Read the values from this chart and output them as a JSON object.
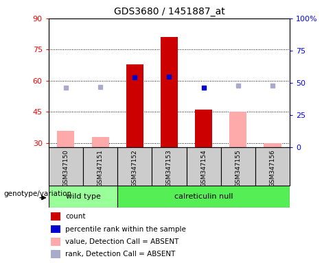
{
  "title": "GDS3680 / 1451887_at",
  "samples": [
    "GSM347150",
    "GSM347151",
    "GSM347152",
    "GSM347153",
    "GSM347154",
    "GSM347155",
    "GSM347156"
  ],
  "count_values": [
    null,
    null,
    68,
    81,
    46,
    null,
    null
  ],
  "percentile_rank": [
    null,
    null,
    54,
    55,
    46,
    null,
    null
  ],
  "absent_value": [
    36,
    33,
    null,
    null,
    null,
    45,
    30
  ],
  "absent_rank": [
    46,
    47,
    null,
    null,
    null,
    48,
    48
  ],
  "ylim_left": [
    28,
    90
  ],
  "ylim_right": [
    0,
    100
  ],
  "yticks_left": [
    30,
    45,
    60,
    75,
    90
  ],
  "yticks_right": [
    0,
    25,
    50,
    75,
    100
  ],
  "yticklabels_right": [
    "0",
    "25",
    "50",
    "75",
    "100%"
  ],
  "color_count": "#cc0000",
  "color_percentile": "#0000cc",
  "color_absent_value": "#ffaaaa",
  "color_absent_rank": "#aaaacc",
  "group_bg_color": "#cccccc",
  "wt_color": "#99ff99",
  "cal_color": "#55ee55",
  "legend_items": [
    {
      "label": "count",
      "color": "#cc0000"
    },
    {
      "label": "percentile rank within the sample",
      "color": "#0000cc"
    },
    {
      "label": "value, Detection Call = ABSENT",
      "color": "#ffaaaa"
    },
    {
      "label": "rank, Detection Call = ABSENT",
      "color": "#aaaacc"
    }
  ],
  "genotype_label": "genotype/variation",
  "bar_width": 0.5
}
